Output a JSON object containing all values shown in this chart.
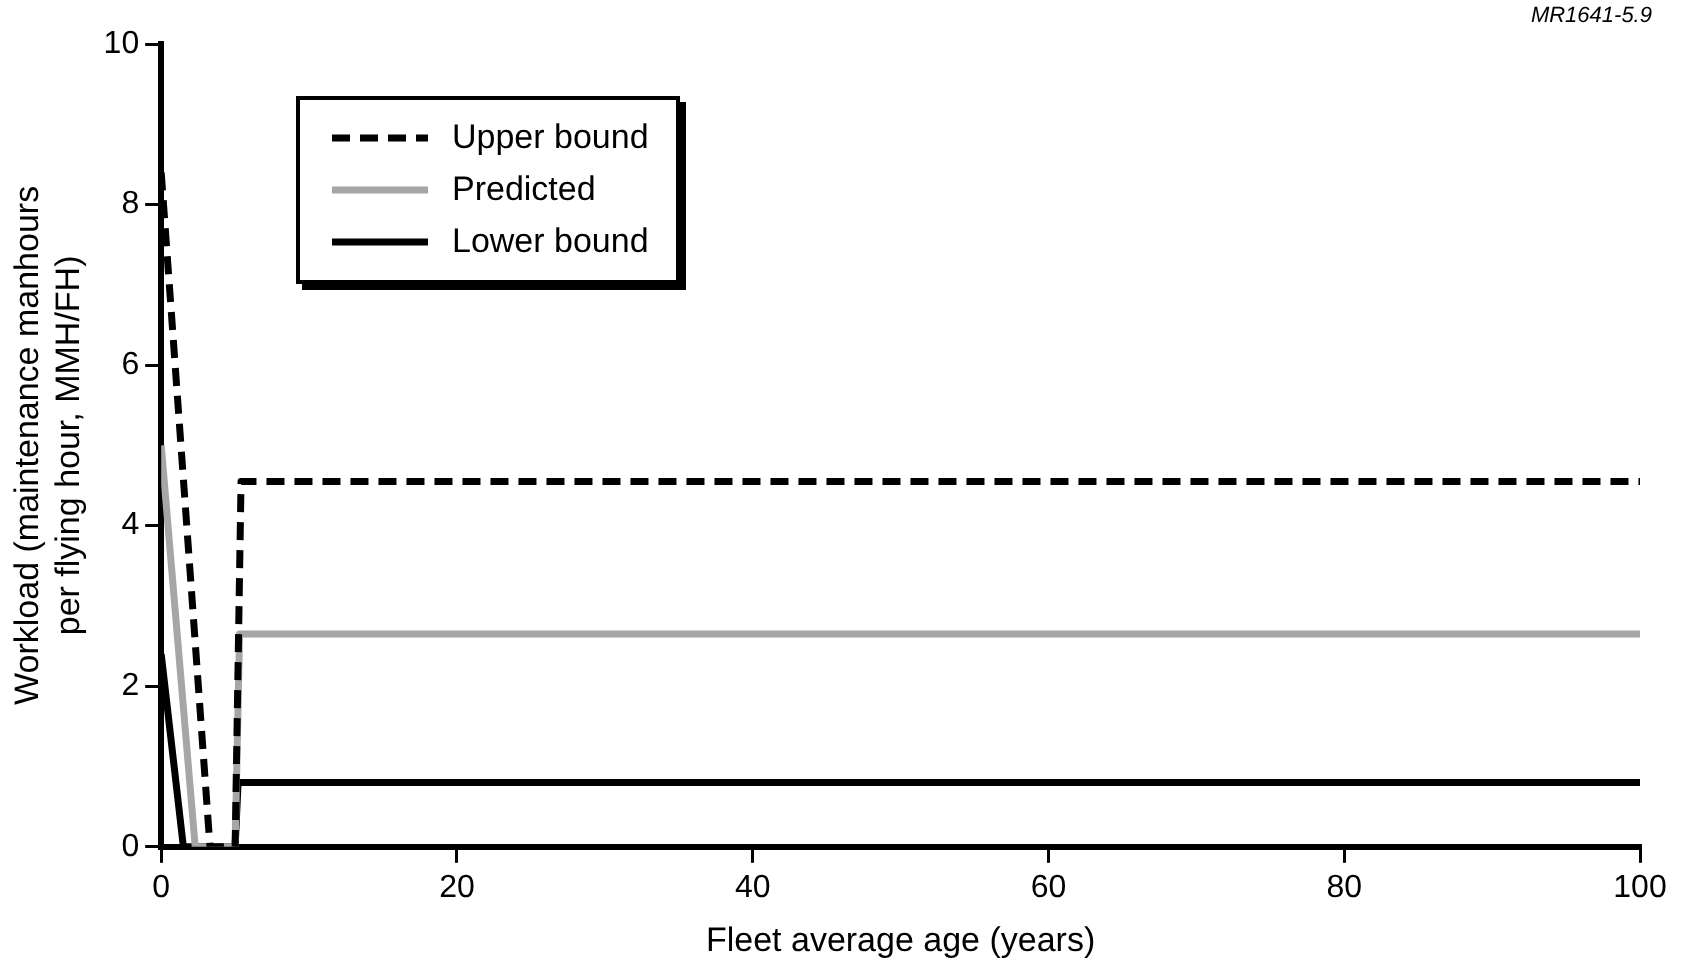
{
  "chart_data": {
    "type": "line",
    "xlabel": "Fleet average age (years)",
    "ylabel": "Workload (maintenance manhours\nper flying hour, MMH/FH)",
    "annotations": [
      "MR1641-5.9"
    ],
    "xlim": [
      0,
      100
    ],
    "xticks": [
      0,
      20,
      40,
      60,
      80,
      100
    ],
    "ylim": [
      0,
      10
    ],
    "yticks": [
      0,
      2,
      4,
      6,
      8,
      10
    ],
    "grid": false,
    "legend": "top left",
    "marker": "none",
    "series": [
      {
        "name": "Upper bound",
        "color": "#000000",
        "line_style": "dashed",
        "x": [
          0,
          3.3,
          5.0,
          5.4,
          100
        ],
        "values": [
          8.4,
          0,
          0,
          4.55,
          4.55
        ]
      },
      {
        "name": "Predicted",
        "color": "#a6a6a6",
        "line_style": "solid",
        "x": [
          0,
          2.3,
          5.0,
          5.3,
          100
        ],
        "values": [
          5.0,
          0,
          0,
          2.65,
          2.65
        ]
      },
      {
        "name": "Lower bound",
        "color": "#000000",
        "line_style": "solid",
        "x": [
          0,
          1.5,
          5.0,
          5.2,
          100
        ],
        "values": [
          2.4,
          0,
          0,
          0.8,
          0.8
        ]
      }
    ]
  }
}
